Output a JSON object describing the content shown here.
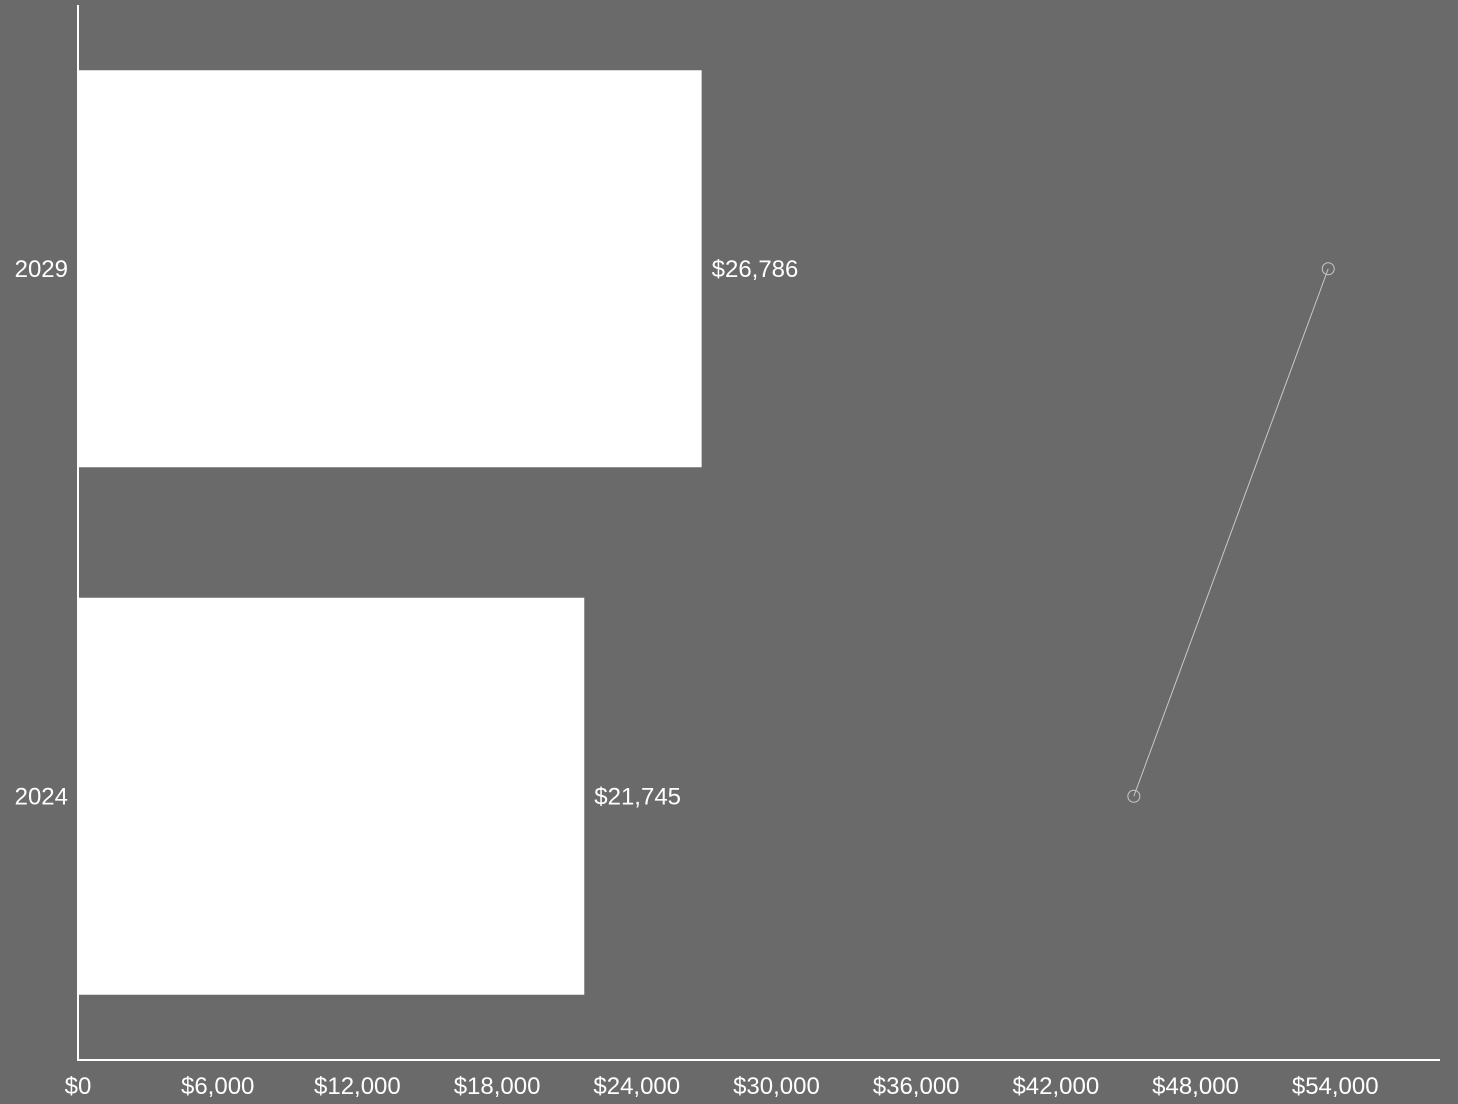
{
  "chart_data": {
    "type": "bar",
    "orientation": "horizontal",
    "categories": [
      "2029",
      "2024"
    ],
    "values": [
      26786,
      21745
    ],
    "value_labels": [
      "$26,786",
      "$21,745"
    ],
    "xlim": [
      0,
      58500
    ],
    "x_ticks": [
      0,
      6000,
      12000,
      18000,
      24000,
      30000,
      36000,
      42000,
      48000,
      54000
    ],
    "x_tick_labels": [
      "$0",
      "$6,000",
      "$12,000",
      "$18,000",
      "$24,000",
      "$30,000",
      "$36,000",
      "$42,000",
      "$48,000",
      "$54,000"
    ],
    "overlay_line": {
      "points": [
        {
          "category": "2029",
          "x": 53700
        },
        {
          "category": "2024",
          "x": 45350
        }
      ]
    },
    "grid": false,
    "legend": "none",
    "colors": {
      "background": "#6a6a6a",
      "bar": "#ffffff",
      "axis": "#ffffff",
      "text": "#ffffff",
      "overlay_line": "#c8c8c8"
    }
  }
}
